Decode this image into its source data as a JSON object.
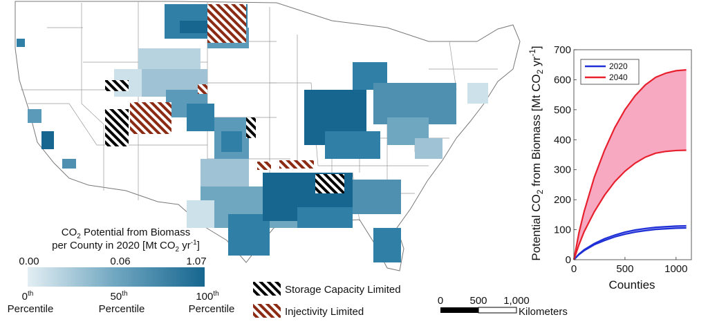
{
  "map": {
    "legend": {
      "title_line1_prefix": "CO",
      "title_line1_sub": "2",
      "title_line1_suffix": " Potential from Biomass",
      "title_line2_prefix": "per County in 2020 [Mt CO",
      "title_line2_sub": "2",
      "title_line2_mid": " yr",
      "title_line2_sup": "-1",
      "title_line2_suffix": "]",
      "tick_min": "0.00",
      "tick_mid": "0.06",
      "tick_max": "1.07",
      "pct_low_num": "0",
      "pct_mid_num": "50",
      "pct_high_num": "100",
      "pct_sup": "th",
      "pct_word": "Percentile",
      "color_low": "#e3eef3",
      "color_high": "#16668f"
    },
    "hatch_legend": {
      "storage_label": "Storage Capacity Limited",
      "injectivity_label": "Injectivity Limited",
      "storage_color": "#000000",
      "injectivity_color": "#8b2b14"
    },
    "scale_bar": {
      "tick_0": "0",
      "tick_500": "500",
      "tick_1000": "1,000",
      "unit": "Kilometers"
    }
  },
  "chart_data": {
    "type": "area",
    "ylabel_prefix": "Potential CO",
    "ylabel_sub": "2",
    "ylabel_mid": " from Biomass [Mt CO",
    "ylabel_sub2": "2",
    "ylabel_yr": " yr",
    "ylabel_sup": "-1",
    "ylabel_suffix": "]",
    "xlabel": "Counties",
    "xlim": [
      0,
      1150
    ],
    "ylim": [
      0,
      700
    ],
    "xticks": [
      "0",
      "500",
      "1000"
    ],
    "xtick_values": [
      0,
      500,
      1000
    ],
    "yticks": [
      "0",
      "100",
      "200",
      "300",
      "400",
      "500",
      "600",
      "700"
    ],
    "ytick_values": [
      0,
      100,
      200,
      300,
      400,
      500,
      600,
      700
    ],
    "x": [
      0,
      50,
      100,
      200,
      300,
      400,
      500,
      600,
      700,
      800,
      900,
      1000,
      1100
    ],
    "series": [
      {
        "name": "2020",
        "color": "#1f2fd6",
        "lower": [
          0,
          17,
          30,
          50,
          64,
          76,
          85,
          92,
          97,
          101,
          103,
          105,
          106
        ],
        "upper": [
          0,
          19,
          33,
          54,
          70,
          82,
          92,
          99,
          104,
          108,
          110,
          112,
          113
        ]
      },
      {
        "name": "2040",
        "color": "#e8202e",
        "fill": "#f7a9c1",
        "lower": [
          0,
          50,
          93,
          160,
          215,
          260,
          295,
          322,
          342,
          355,
          361,
          364,
          365
        ],
        "upper": [
          0,
          90,
          160,
          275,
          365,
          440,
          500,
          547,
          583,
          608,
          622,
          630,
          633
        ]
      }
    ],
    "legend_position": "top-left"
  }
}
